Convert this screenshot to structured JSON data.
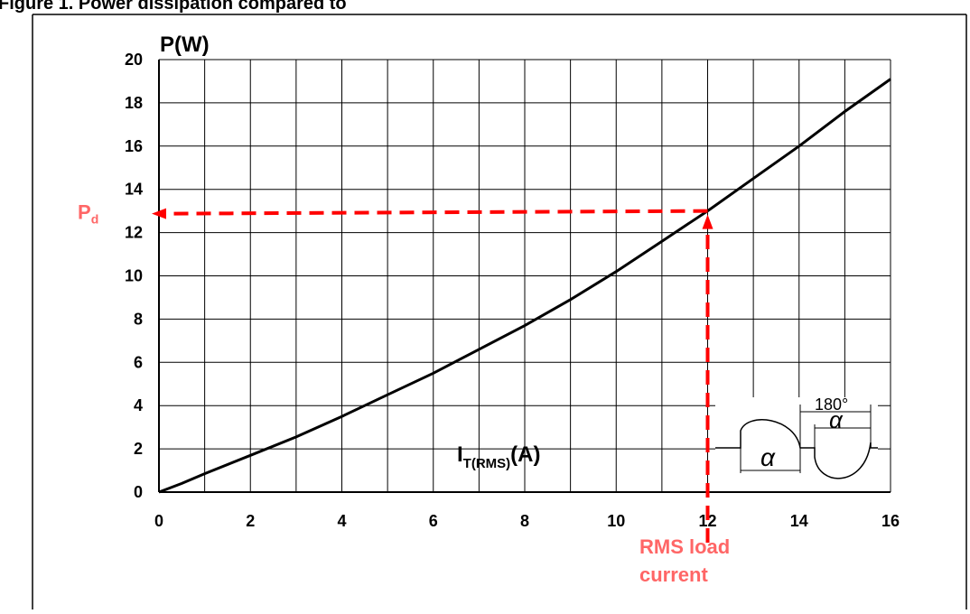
{
  "figure": {
    "caption": "Figure 1. Power dissipation compared to"
  },
  "chart_data": {
    "type": "line",
    "ylabel": "P(W)",
    "xlabel_main": "I",
    "xlabel_sub": "T(RMS)",
    "xlabel_unit": "(A)",
    "xlim": [
      0,
      16
    ],
    "ylim": [
      0,
      20
    ],
    "grid": true,
    "x_ticks": [
      0,
      2,
      4,
      6,
      8,
      10,
      12,
      14,
      16
    ],
    "y_ticks": [
      0,
      2,
      4,
      6,
      8,
      10,
      12,
      14,
      16,
      18,
      20
    ],
    "series": [
      {
        "x": [
          0,
          0.5,
          1,
          2,
          3,
          4,
          5,
          6,
          7,
          8,
          9,
          10,
          11,
          12,
          13,
          14,
          15,
          16
        ],
        "y": [
          0,
          0.4,
          0.85,
          1.7,
          2.55,
          3.5,
          4.5,
          5.5,
          6.6,
          7.7,
          8.9,
          10.2,
          11.6,
          13.0,
          14.5,
          16.0,
          17.6,
          19.1
        ]
      }
    ],
    "annotation": {
      "pd_label_main": "P",
      "pd_label_sub": "d",
      "operating_point": {
        "x": 12,
        "y": 13
      },
      "rms_label_line1": "RMS load",
      "rms_label_line2": "current",
      "color": "#ff0000",
      "label_color": "#ff6666"
    },
    "waveform_inset": {
      "angle_label": "180°",
      "alpha_symbol": "α"
    }
  }
}
